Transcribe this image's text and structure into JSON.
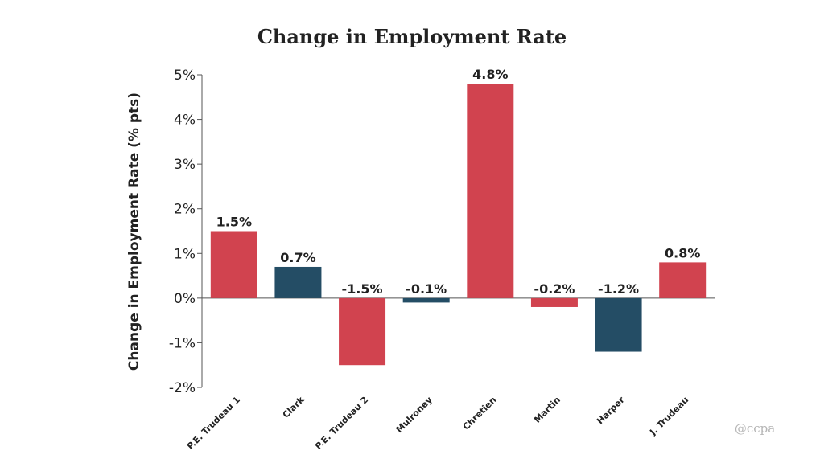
{
  "chart_data": {
    "type": "bar",
    "title": "Change in Employment Rate",
    "ylabel": "Change in Employment Rate (% pts)",
    "xlabel": "",
    "categories": [
      "P.E. Trudeau 1",
      "Clark",
      "P.E. Trudeau 2",
      "Mulroney",
      "Chretien",
      "Martin",
      "Harper",
      "J. Trudeau"
    ],
    "values": [
      1.5,
      0.7,
      -1.5,
      -0.1,
      4.8,
      -0.2,
      -1.2,
      0.8
    ],
    "data_labels": [
      "1.5%",
      "0.7%",
      "-1.5%",
      "-0.1%",
      "4.8%",
      "-0.2%",
      "-1.2%",
      "0.8%"
    ],
    "bar_colors": [
      "#d1434f",
      "#244d65",
      "#d1434f",
      "#244d65",
      "#d1434f",
      "#d1434f",
      "#244d65",
      "#d1434f"
    ],
    "ylim": [
      -2,
      5
    ],
    "yticks": [
      5,
      4,
      3,
      2,
      1,
      0,
      -1,
      -2
    ],
    "ytick_labels": [
      "5%",
      "4%",
      "3%",
      "2%",
      "1%",
      "0%",
      "-1%",
      "-2%"
    ],
    "grid": false,
    "legend": "none"
  },
  "watermark": "@ccpa"
}
